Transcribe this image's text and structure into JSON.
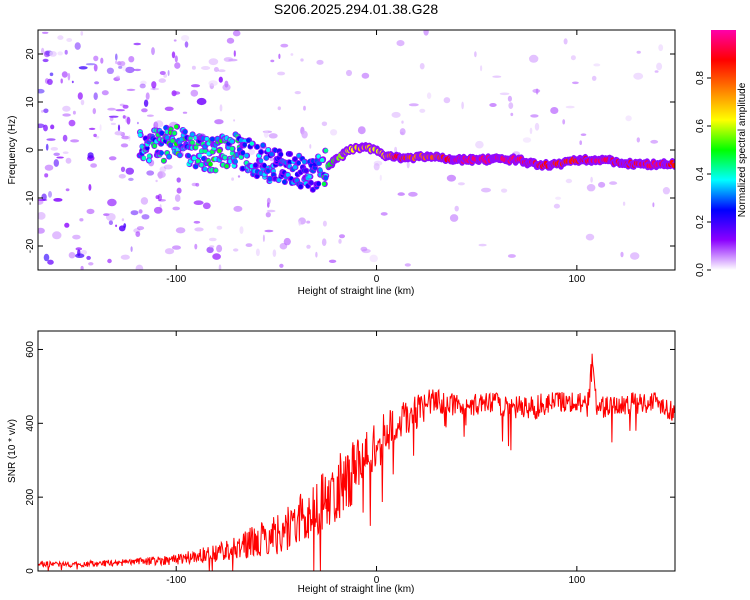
{
  "title": "S206.2025.294.01.38.G28",
  "chart_data": [
    {
      "type": "heatmap",
      "title": "S206.2025.294.01.38.G28",
      "xlabel": "Height of straight line (km)",
      "ylabel": "Frequency (Hz)",
      "xlim": [
        -169,
        149
      ],
      "ylim": [
        -25,
        25
      ],
      "xticks": [
        -100,
        0,
        100
      ],
      "xtick_labels": [
        "-100",
        "0",
        "100"
      ],
      "yticks": [
        -20,
        -10,
        0,
        10,
        20
      ],
      "ytick_labels": [
        "-20",
        "-10",
        "0",
        "10",
        "20"
      ],
      "ridge": {
        "description": "Dominant frequency ridge (peak of normalized spectral amplitude) vs height",
        "x": [
          -118,
          -110,
          -100,
          -90,
          -80,
          -70,
          -60,
          -50,
          -40,
          -30,
          -25,
          -20,
          -15,
          -10,
          -5,
          0,
          5,
          10,
          20,
          30,
          40,
          50,
          60,
          70,
          80,
          90,
          100,
          110,
          120,
          130,
          140,
          149
        ],
        "y": [
          0.5,
          1.0,
          1.5,
          -0.5,
          -1.0,
          0.0,
          -2.0,
          -3.5,
          -4.5,
          -5.0,
          -3.5,
          -2.0,
          -0.5,
          0.5,
          0.5,
          0.0,
          -1.5,
          -1.5,
          -1.5,
          -1.5,
          -2.0,
          -2.0,
          -2.0,
          -2.0,
          -3.0,
          -3.0,
          -2.0,
          -2.0,
          -2.5,
          -3.0,
          -3.0,
          -3.0
        ],
        "amplitude": [
          0.35,
          0.4,
          0.45,
          0.4,
          0.45,
          0.4,
          0.35,
          0.3,
          0.3,
          0.3,
          0.45,
          0.55,
          0.6,
          0.65,
          0.7,
          0.6,
          0.7,
          0.9,
          0.75,
          0.8,
          0.95,
          0.95,
          0.95,
          0.95,
          0.9,
          0.85,
          0.85,
          0.95,
          0.9,
          0.9,
          0.95,
          0.85
        ]
      },
      "colorbar": {
        "label": "Normalized spectral amplitude",
        "range": [
          0,
          1
        ],
        "ticks": [
          0.0,
          0.2,
          0.4,
          0.6,
          0.8
        ],
        "tick_labels": [
          "0.0",
          "0.2",
          "0.4",
          "0.6",
          "0.8"
        ],
        "colormap": [
          "#ffffff",
          "#8b00ff",
          "#0000ff",
          "#00ffff",
          "#00ff00",
          "#ffff00",
          "#ff8000",
          "#ff0000",
          "#ff00aa"
        ]
      }
    },
    {
      "type": "line",
      "xlabel": "Height of straight line (km)",
      "ylabel": "SNR (10 * v/v)",
      "xlim": [
        -169,
        149
      ],
      "ylim": [
        0,
        650
      ],
      "xticks": [
        -100,
        0,
        100
      ],
      "xtick_labels": [
        "-100",
        "0",
        "100"
      ],
      "yticks": [
        0,
        200,
        400,
        600
      ],
      "ytick_labels": [
        "0",
        "200",
        "400",
        "600"
      ],
      "color": "#ff0000",
      "series": [
        {
          "name": "SNR",
          "x": [
            -169,
            -160,
            -150,
            -140,
            -130,
            -120,
            -110,
            -100,
            -90,
            -80,
            -70,
            -60,
            -50,
            -40,
            -30,
            -20,
            -10,
            0,
            10,
            20,
            25,
            30,
            40,
            50,
            60,
            70,
            80,
            90,
            100,
            105,
            108,
            110,
            120,
            130,
            140,
            149
          ],
          "y": [
            20,
            18,
            18,
            20,
            22,
            25,
            28,
            32,
            40,
            50,
            65,
            80,
            100,
            130,
            170,
            220,
            280,
            340,
            400,
            430,
            450,
            460,
            450,
            450,
            455,
            440,
            445,
            460,
            460,
            440,
            580,
            440,
            450,
            455,
            460,
            430
          ],
          "spread": [
            8,
            8,
            8,
            9,
            9,
            10,
            12,
            15,
            20,
            25,
            35,
            45,
            55,
            70,
            80,
            90,
            90,
            70,
            55,
            45,
            40,
            35,
            30,
            30,
            30,
            35,
            35,
            30,
            30,
            35,
            40,
            35,
            30,
            30,
            30,
            30
          ]
        }
      ]
    }
  ]
}
